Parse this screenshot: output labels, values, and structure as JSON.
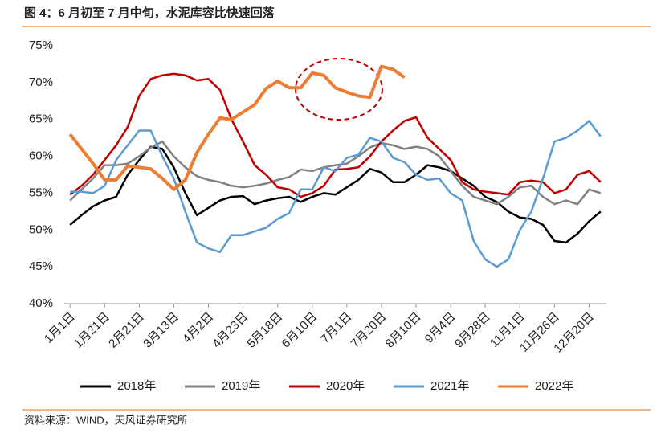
{
  "chart_data": {
    "type": "line",
    "title": "图 4：6 月初至 7 月中旬，水泥库容比快速回落",
    "source": "资料来源：WIND，天风证券研究所",
    "categories": [
      "1月1日",
      null,
      null,
      "1月21日",
      null,
      null,
      "2月21日",
      null,
      null,
      "3月13日",
      null,
      null,
      "4月2日",
      null,
      null,
      "4月23日",
      null,
      null,
      "5月18日",
      null,
      null,
      "6月10日",
      null,
      null,
      "7月1日",
      null,
      null,
      "7月20日",
      null,
      null,
      "8月10日",
      null,
      null,
      "9月4日",
      null,
      null,
      "9月28日",
      null,
      null,
      "11月1日",
      null,
      null,
      "11月26日",
      null,
      null,
      "12月20日",
      null
    ],
    "series": [
      {
        "name": "2018年",
        "color": "#000000",
        "values": [
          50.7,
          52,
          53.2,
          54,
          54.5,
          57.5,
          59.5,
          61.3,
          61,
          58.5,
          55,
          52,
          53,
          54,
          54.5,
          54.6,
          53.5,
          54,
          54.3,
          54.5,
          53.8,
          54.5,
          55,
          54.8,
          55.8,
          56.8,
          58.3,
          57.8,
          56.5,
          56.5,
          57.5,
          58.8,
          58.5,
          58,
          57,
          56,
          54.5,
          53.8,
          52.5,
          51.7,
          51.5,
          50.7,
          48.5,
          48.3,
          49.5,
          51.2,
          52.5
        ]
      },
      {
        "name": "2019年",
        "color": "#808080",
        "values": [
          54,
          55.5,
          57,
          58.8,
          58.8,
          59,
          60,
          61.2,
          62,
          60,
          58.5,
          57.3,
          56.8,
          56.5,
          56,
          55.8,
          56,
          56.3,
          56.8,
          57.2,
          58.2,
          58,
          58.5,
          58.8,
          59,
          60,
          61.2,
          61.8,
          61.5,
          61,
          61.3,
          61,
          60,
          58,
          56,
          54.5,
          54,
          53.5,
          54.5,
          55.8,
          56,
          54.5,
          53.5,
          54,
          53.5,
          55.5,
          55
        ]
      },
      {
        "name": "2020年",
        "color": "#c00000",
        "values": [
          54.8,
          56,
          57.5,
          59.5,
          61.5,
          64,
          68.2,
          70.5,
          71,
          71.2,
          71,
          70.3,
          70.5,
          69,
          65,
          62,
          58.8,
          57.5,
          55.8,
          55.5,
          54.5,
          55,
          56,
          58.2,
          58.3,
          58.5,
          60,
          62,
          63.5,
          64.8,
          65.3,
          62.5,
          61,
          59.5,
          56.5,
          55.5,
          55.2,
          55,
          54.8,
          56.5,
          56.7,
          56.5,
          55,
          55.5,
          57.5,
          58,
          56.5
        ]
      },
      {
        "name": "2021年",
        "color": "#5b9bd5",
        "values": [
          55.2,
          55.2,
          55,
          56,
          59.5,
          61.5,
          63.5,
          63.5,
          60,
          57,
          52.5,
          48.3,
          47.5,
          47,
          49.3,
          49.3,
          49.8,
          50.3,
          51.5,
          52.3,
          55.5,
          55.5,
          58.5,
          58,
          59.8,
          60.2,
          62.5,
          62,
          59.8,
          59.2,
          57.5,
          56.8,
          57,
          55,
          54,
          48.5,
          46,
          45,
          46,
          50,
          52.5,
          57,
          62,
          62.5,
          63.5,
          64.8,
          62.7
        ]
      },
      {
        "name": "2022年",
        "color": "#ed7d31",
        "values": [
          63,
          61,
          59,
          56.8,
          56.8,
          58.7,
          58.5,
          58.3,
          57,
          55.5,
          56.8,
          60.5,
          63,
          65.2,
          65,
          66,
          67,
          69.2,
          70.2,
          69.3,
          69.3,
          71.3,
          71,
          69.3,
          68.7,
          68.2,
          68,
          72.2,
          71.8,
          70.7,
          null,
          null,
          null,
          null,
          null,
          null,
          null,
          null,
          null,
          null,
          null,
          null,
          null,
          null,
          null,
          null,
          null
        ]
      }
    ],
    "ylim": [
      40,
      75
    ],
    "yticks": [
      {
        "value": 40,
        "label": "40%"
      },
      {
        "value": 45,
        "label": "45%"
      },
      {
        "value": 50,
        "label": "50%"
      },
      {
        "value": 55,
        "label": "55%"
      },
      {
        "value": 60,
        "label": "60%"
      },
      {
        "value": 65,
        "label": "65%"
      },
      {
        "value": 70,
        "label": "70%"
      },
      {
        "value": 75,
        "label": "75%"
      }
    ],
    "legend": "bottom"
  }
}
